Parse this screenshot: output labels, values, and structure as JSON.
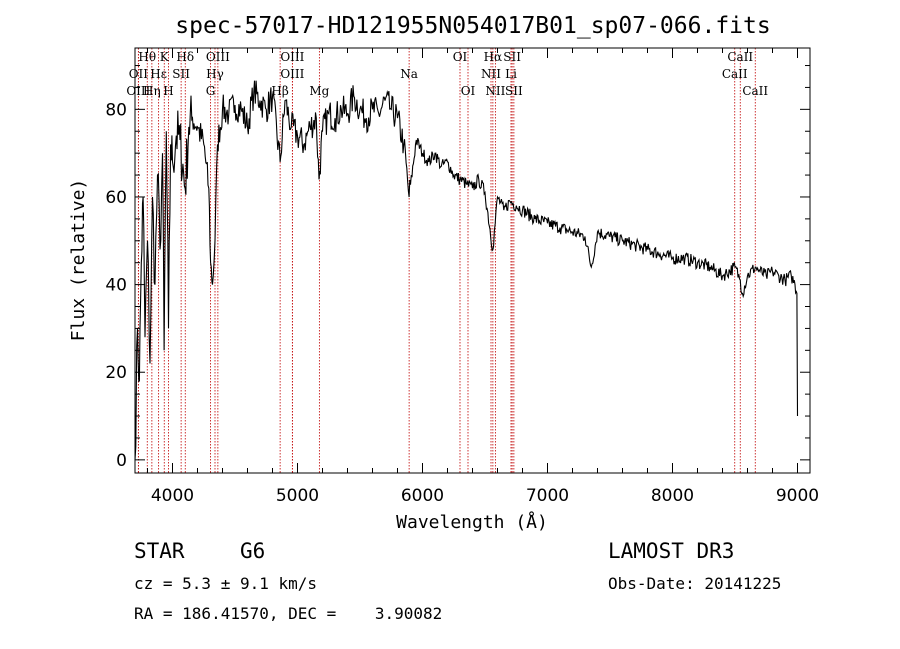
{
  "chart_data": {
    "type": "line",
    "title": "spec-57017-HD121955N054017B01_sp07-066.fits",
    "xlabel": "Wavelength (Å)",
    "ylabel": "Flux (relative)",
    "xlim": [
      3700,
      9100
    ],
    "ylim": [
      -3,
      94
    ],
    "xticks": [
      4000,
      5000,
      6000,
      7000,
      8000,
      9000
    ],
    "xtick_labels": [
      "4000",
      "5000",
      "6000",
      "7000",
      "8000",
      "9000"
    ],
    "yticks": [
      0,
      20,
      40,
      60,
      80
    ],
    "ytick_labels": [
      "0",
      "20",
      "40",
      "60",
      "80"
    ],
    "series": [
      {
        "name": "spectrum",
        "x": [
          3700,
          3720,
          3735,
          3750,
          3765,
          3780,
          3800,
          3820,
          3840,
          3860,
          3880,
          3900,
          3920,
          3933,
          3950,
          3968,
          3985,
          4000,
          4030,
          4060,
          4101,
          4130,
          4160,
          4200,
          4250,
          4290,
          4305,
          4320,
          4340,
          4360,
          4400,
          4450,
          4500,
          4550,
          4600,
          4650,
          4700,
          4750,
          4800,
          4861,
          4900,
          4950,
          5000,
          5050,
          5100,
          5150,
          5172,
          5200,
          5250,
          5300,
          5350,
          5400,
          5450,
          5500,
          5550,
          5600,
          5650,
          5700,
          5750,
          5800,
          5850,
          5893,
          5950,
          6000,
          6050,
          6100,
          6150,
          6200,
          6250,
          6300,
          6350,
          6400,
          6450,
          6500,
          6563,
          6600,
          6650,
          6700,
          6750,
          6800,
          6900,
          7000,
          7100,
          7200,
          7300,
          7350,
          7400,
          7500,
          7600,
          7700,
          7800,
          7900,
          8000,
          8100,
          8200,
          8300,
          8400,
          8500,
          8542,
          8560,
          8600,
          8662,
          8700,
          8750,
          8800,
          8850,
          8900,
          8950,
          8980,
          8995,
          9000
        ],
        "y": [
          0,
          30,
          18,
          45,
          60,
          28,
          50,
          22,
          60,
          40,
          65,
          48,
          70,
          25,
          75,
          30,
          72,
          68,
          74,
          73,
          62,
          76,
          78,
          76,
          72,
          62,
          45,
          40,
          50,
          72,
          80,
          79,
          81,
          80,
          76,
          84,
          82,
          80,
          83,
          68,
          82,
          76,
          74,
          72,
          76,
          78,
          64,
          75,
          79,
          78,
          80,
          79,
          83,
          80,
          78,
          80,
          79,
          82,
          80,
          78,
          72,
          60,
          73,
          70,
          68,
          70,
          67,
          68,
          65,
          64,
          63,
          62,
          64,
          61,
          48,
          60,
          57,
          59,
          58,
          57,
          55,
          54,
          53,
          52,
          51,
          44,
          52,
          51,
          50,
          49,
          48,
          47,
          46,
          46,
          45,
          44,
          42,
          44,
          41,
          38,
          42,
          44,
          43,
          42,
          43,
          42,
          41,
          42,
          40,
          38,
          10
        ]
      }
    ],
    "spectral_lines": [
      {
        "name": "Hθ",
        "x": 3798,
        "row": 0
      },
      {
        "name": "K",
        "x": 3934,
        "row": 0
      },
      {
        "name": "Hδ",
        "x": 4102,
        "row": 0
      },
      {
        "name": "OIII",
        "x": 4363,
        "row": 0
      },
      {
        "name": "OIII",
        "x": 4959,
        "row": 0
      },
      {
        "name": "OI",
        "x": 6300,
        "row": 0
      },
      {
        "name": "Hα",
        "x": 6563,
        "row": 0
      },
      {
        "name": "SII",
        "x": 6717,
        "row": 0
      },
      {
        "name": "CaII",
        "x": 8542,
        "row": 0
      },
      {
        "name": "OII",
        "x": 3727,
        "row": 1
      },
      {
        "name": "Hε",
        "x": 3889,
        "row": 1
      },
      {
        "name": "SII",
        "x": 4069,
        "row": 1
      },
      {
        "name": "Hγ",
        "x": 4340,
        "row": 1
      },
      {
        "name": "OIII",
        "x": 4959,
        "row": 1
      },
      {
        "name": "Na",
        "x": 5893,
        "row": 1
      },
      {
        "name": "NII",
        "x": 6548,
        "row": 1
      },
      {
        "name": "Li",
        "x": 6708,
        "row": 1
      },
      {
        "name": "CaII",
        "x": 8498,
        "row": 1
      },
      {
        "name": "OIII",
        "x": 3727,
        "row": 2
      },
      {
        "name": "Hη",
        "x": 3835,
        "row": 2
      },
      {
        "name": "H",
        "x": 3968,
        "row": 2
      },
      {
        "name": "G",
        "x": 4304,
        "row": 2
      },
      {
        "name": "Hβ",
        "x": 4861,
        "row": 2
      },
      {
        "name": "Mg",
        "x": 5175,
        "row": 2
      },
      {
        "name": "OI",
        "x": 6364,
        "row": 2
      },
      {
        "name": "NII",
        "x": 6583,
        "row": 2
      },
      {
        "name": "SII",
        "x": 6731,
        "row": 2
      },
      {
        "name": "CaII",
        "x": 8662,
        "row": 2
      }
    ],
    "line_marker_color": "#c00000"
  },
  "info": {
    "class": "STAR",
    "subclass": "G6",
    "survey": "LAMOST DR3",
    "cz": "cz = 5.3 ± 9.1 km/s",
    "obs_date": "Obs-Date: 20141225",
    "coords": "RA = 186.41570, DEC =    3.90082"
  }
}
